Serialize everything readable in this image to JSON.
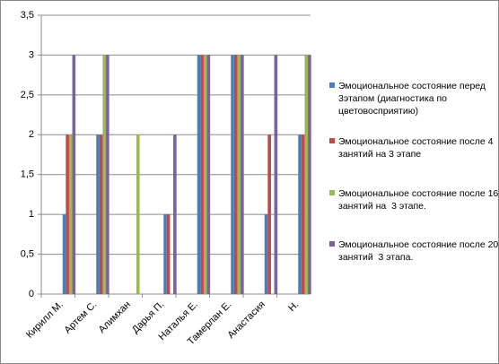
{
  "chart_data": {
    "type": "bar",
    "categories": [
      "Кирилл М.",
      "Артем С.",
      "Алимхан",
      "Дарья П.",
      "Наталья Е.",
      "Тамерлан Е.",
      "Анастасия",
      "Н."
    ],
    "series": [
      {
        "name": "Эмоциональное состояние перед 3этапом (диагностика по цветовосприятию)",
        "color": "#4a7ebb",
        "values": [
          1,
          2,
          0,
          1,
          3,
          3,
          1,
          2
        ]
      },
      {
        "name": "Эмоциональное состояние после 4 занятий на 3 этапе",
        "color": "#be4b48",
        "values": [
          2,
          2,
          0,
          1,
          3,
          3,
          2,
          2
        ]
      },
      {
        "name": "Эмоциональное состояние после 16 занятий на  3 этапе.",
        "color": "#98b954",
        "values": [
          2,
          3,
          2,
          0,
          3,
          3,
          0,
          3
        ]
      },
      {
        "name": "Эмоциональное состояние после 20 занятий  3 этапа.",
        "color": "#7d60a0",
        "values": [
          3,
          3,
          0,
          2,
          3,
          3,
          3,
          3
        ]
      }
    ],
    "ylim": [
      0,
      3.5
    ],
    "yticks": [
      0,
      {
        "value": 0.5,
        "label": "0,5"
      },
      1,
      {
        "value": 1.5,
        "label": "1,5"
      },
      2,
      {
        "value": 2.5,
        "label": "2,5"
      },
      3,
      {
        "value": 3.5,
        "label": "3,5"
      }
    ],
    "grid": true
  }
}
